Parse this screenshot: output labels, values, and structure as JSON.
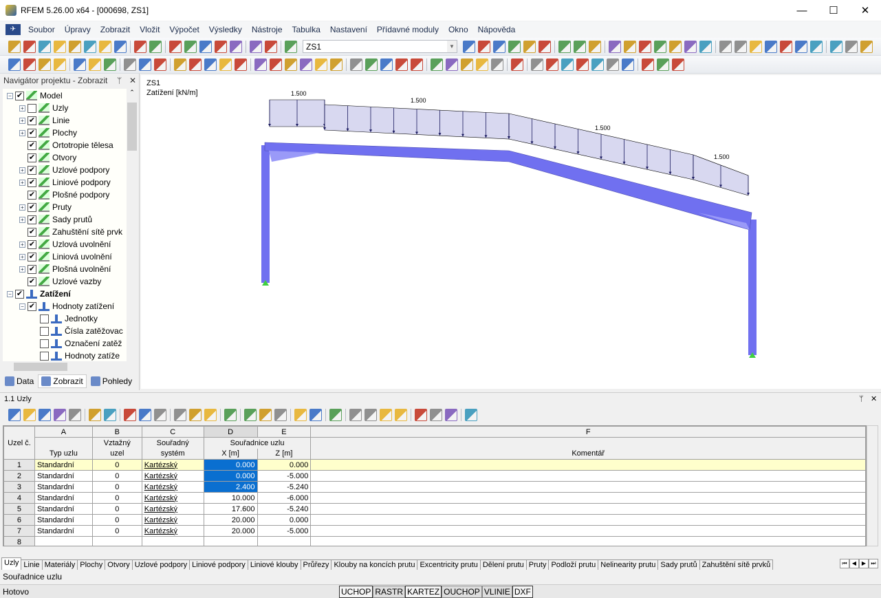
{
  "window": {
    "title": "RFEM 5.26.00 x64 - [000698, ZS1]",
    "minimize": "—",
    "maximize": "☐",
    "close": "✕"
  },
  "menu": [
    "Soubor",
    "Úpravy",
    "Zobrazit",
    "Vložit",
    "Výpočet",
    "Výsledky",
    "Nástroje",
    "Tabulka",
    "Nastavení",
    "Přídavné moduly",
    "Okno",
    "Nápověda"
  ],
  "toolbar1": {
    "load_case": "ZS1",
    "icons_left": [
      "new-file-icon",
      "open-icon",
      "archive-icon",
      "database-icon",
      "save-icon",
      "print-report-icon",
      "print-icon",
      "print-preview-icon",
      "|",
      "undo-icon",
      "redo-icon",
      "|",
      "line-tool-icon",
      "pick-node-icon",
      "target-icon",
      "select-icon",
      "windows-icon",
      "|",
      "table-icon",
      "table-grid-icon",
      "|",
      "load-case-icon"
    ],
    "icons_right": [
      "prev-icon",
      "next-icon",
      "show-loads-icon",
      "load-values-icon",
      "view-icon",
      "value-xx-icon",
      "|",
      "results-icon",
      "deform-icon",
      "diagram-icon",
      "|",
      "grid-icon",
      "mesh-icon",
      "supports-icon",
      "releases-icon",
      "highlight-icon",
      "members-icon",
      "sections-icon",
      "|",
      "measure-icon",
      "rotate-icon",
      "mirror-icon",
      "delete-icon",
      "render-icon",
      "calc-icon",
      "settings-icon",
      "|",
      "export-icon",
      "import-icon",
      "pdf-icon"
    ]
  },
  "toolbar2": {
    "icons": [
      "node-icon",
      "line-icon",
      "member-icon",
      "polyline-icon",
      "|",
      "support-icon",
      "hinge-icon",
      "surface-icon",
      "|",
      "dimension-icon",
      "annotation-icon",
      "grid-point-icon",
      "|",
      "surface-new-icon",
      "opening-icon",
      "solid-icon",
      "box-icon",
      "copy-icon",
      "|",
      "move-icon",
      "load-node-icon",
      "load-member-icon",
      "load-line-icon",
      "load-surface-icon",
      "load-gen-icon",
      "|",
      "zoom-all-icon",
      "zoom-window-icon",
      "zoom-del-icon",
      "iso-view-icon",
      "3d-view-icon",
      "|",
      "view-x-icon",
      "view-y-icon",
      "view-z-icon",
      "view-iso-icon",
      "filter-icon",
      "|",
      "shading-icon",
      "|",
      "line-style-icon",
      "wire-icon",
      "section-icon",
      "solid-view-icon",
      "plane-icon",
      "slope-icon",
      "layers-icon",
      "|",
      "table-icon",
      "paint-icon",
      "color-scale-icon"
    ]
  },
  "navigator": {
    "title": "Navigátor projektu - Zobrazit",
    "pin": "ᛘ",
    "close": "✕",
    "items": [
      {
        "label": "Model",
        "level": 0,
        "expander": "-",
        "checked": true,
        "icon": "model",
        "bold": false
      },
      {
        "label": "Uzly",
        "level": 1,
        "expander": "+",
        "checked": false,
        "icon": "model"
      },
      {
        "label": "Linie",
        "level": 1,
        "expander": "+",
        "checked": true,
        "icon": "model"
      },
      {
        "label": "Plochy",
        "level": 1,
        "expander": "+",
        "checked": true,
        "icon": "model"
      },
      {
        "label": "Ortotropie tělesa",
        "level": 1,
        "expander": "",
        "checked": true,
        "icon": "model"
      },
      {
        "label": "Otvory",
        "level": 1,
        "expander": "",
        "checked": true,
        "icon": "model"
      },
      {
        "label": "Uzlové podpory",
        "level": 1,
        "expander": "+",
        "checked": true,
        "icon": "model"
      },
      {
        "label": "Liniové podpory",
        "level": 1,
        "expander": "+",
        "checked": true,
        "icon": "model"
      },
      {
        "label": "Plošné podpory",
        "level": 1,
        "expander": "",
        "checked": true,
        "icon": "model"
      },
      {
        "label": "Pruty",
        "level": 1,
        "expander": "+",
        "checked": true,
        "icon": "model"
      },
      {
        "label": "Sady prutů",
        "level": 1,
        "expander": "+",
        "checked": true,
        "icon": "model"
      },
      {
        "label": "Zahuštění sítě prvk",
        "level": 1,
        "expander": "",
        "checked": true,
        "icon": "model"
      },
      {
        "label": "Uzlová uvolnění",
        "level": 1,
        "expander": "+",
        "checked": true,
        "icon": "model"
      },
      {
        "label": "Liniová uvolnění",
        "level": 1,
        "expander": "+",
        "checked": true,
        "icon": "model"
      },
      {
        "label": "Plošná uvolnění",
        "level": 1,
        "expander": "+",
        "checked": true,
        "icon": "model"
      },
      {
        "label": "Uzlové vazby",
        "level": 1,
        "expander": "",
        "checked": true,
        "icon": "model"
      },
      {
        "label": "Zatížení",
        "level": 0,
        "expander": "-",
        "checked": true,
        "icon": "load",
        "bold": true
      },
      {
        "label": "Hodnoty zatížení",
        "level": 1,
        "expander": "-",
        "checked": true,
        "icon": "load"
      },
      {
        "label": "Jednotky",
        "level": 2,
        "expander": "",
        "checked": false,
        "icon": "load"
      },
      {
        "label": "Čísla zatěžovac",
        "level": 2,
        "expander": "",
        "checked": false,
        "icon": "load"
      },
      {
        "label": "Označení zatěž",
        "level": 2,
        "expander": "",
        "checked": false,
        "icon": "load"
      },
      {
        "label": "Hodnoty zatíže",
        "level": 2,
        "expander": "",
        "checked": false,
        "icon": "load"
      }
    ],
    "tabs": [
      {
        "label": "Data",
        "icon": "data-icon",
        "active": false
      },
      {
        "label": "Zobrazit",
        "icon": "display-icon",
        "active": true
      },
      {
        "label": "Pohledy",
        "icon": "views-icon",
        "active": false
      }
    ]
  },
  "view": {
    "load_case": "ZS1",
    "load_label": "Zatížení [kN/m]",
    "load_values": [
      "1.500",
      "1.500",
      "1.500",
      "1.500"
    ],
    "member_color": "#7070f0",
    "load_fill": "#d8d8f0"
  },
  "table_panel": {
    "title": "1.1 Uzly",
    "pin": "ᛘ",
    "close": "✕",
    "toolbar_icons": [
      "excel-export-icon",
      "insert-row-icon",
      "delete-row-icon",
      "sort-icon",
      "filter-icon",
      "|",
      "prev-table-icon",
      "next-table-icon",
      "|",
      "pick-icon",
      "pick-multi-icon",
      "refresh-icon",
      "|",
      "first-icon",
      "up-icon",
      "down-icon",
      "|",
      "clear-icon",
      "|",
      "cut-icon",
      "copy-icon",
      "paste-icon",
      "|",
      "cols-icon",
      "rows-icon",
      "|",
      "edit-icon",
      "|",
      "report-icon",
      "graph-icon",
      "excel-icon",
      "calc-icon",
      "|",
      "text-icon",
      "function-icon",
      "function-off-icon",
      "|",
      "lock-icon"
    ],
    "col_letters": [
      "A",
      "B",
      "C",
      "D",
      "E",
      "F"
    ],
    "headers": {
      "row_no": "Uzel č.",
      "type": "Typ uzlu",
      "ref_node_1": "Vztažný",
      "ref_node_2": "uzel",
      "coord_sys_1": "Souřadný",
      "coord_sys_2": "systém",
      "coords_group": "Souřadnice uzlu",
      "x": "X [m]",
      "z": "Z [m]",
      "comment": "Komentář"
    },
    "rows": [
      {
        "no": "1",
        "type": "Standardní",
        "ref": "0",
        "sys": "Kartézský",
        "x": "0.000",
        "z": "0.000"
      },
      {
        "no": "2",
        "type": "Standardní",
        "ref": "0",
        "sys": "Kartézský",
        "x": "0.000",
        "z": "-5.000"
      },
      {
        "no": "3",
        "type": "Standardní",
        "ref": "0",
        "sys": "Kartézský",
        "x": "2.400",
        "z": "-5.240"
      },
      {
        "no": "4",
        "type": "Standardní",
        "ref": "0",
        "sys": "Kartézský",
        "x": "10.000",
        "z": "-6.000"
      },
      {
        "no": "5",
        "type": "Standardní",
        "ref": "0",
        "sys": "Kartézský",
        "x": "17.600",
        "z": "-5.240"
      },
      {
        "no": "6",
        "type": "Standardní",
        "ref": "0",
        "sys": "Kartézský",
        "x": "20.000",
        "z": "0.000"
      },
      {
        "no": "7",
        "type": "Standardní",
        "ref": "0",
        "sys": "Kartézský",
        "x": "20.000",
        "z": "-5.000"
      },
      {
        "no": "8",
        "type": "",
        "ref": "",
        "sys": "",
        "x": "",
        "z": ""
      }
    ],
    "selected_row": "1",
    "highlight_color": "#0a6fd0"
  },
  "sheet_tabs": [
    "Uzly",
    "Linie",
    "Materiály",
    "Plochy",
    "Otvory",
    "Uzlové podpory",
    "Liniové podpory",
    "Liniové klouby",
    "Průřezy",
    "Klouby na koncích prutu",
    "Excentricity prutu",
    "Dělení prutu",
    "Pruty",
    "Podloží prutu",
    "Nelinearity prutu",
    "Sady prutů",
    "Zahuštění sítě prvků"
  ],
  "tab_nav": [
    "⏮",
    "◀",
    "▶",
    "⏭"
  ],
  "description": "Souřadnice uzlu",
  "status": {
    "text": "Hotovo",
    "toggles": [
      {
        "label": "UCHOP",
        "on": true
      },
      {
        "label": "RASTR",
        "on": false
      },
      {
        "label": "KARTEZ",
        "on": true
      },
      {
        "label": "OUCHOP",
        "on": false
      },
      {
        "label": "VLINIE",
        "on": false
      },
      {
        "label": "DXF",
        "on": true
      }
    ]
  }
}
